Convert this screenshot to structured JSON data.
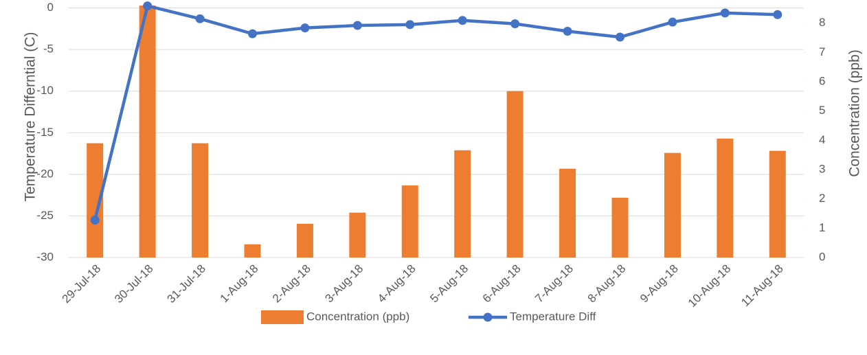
{
  "chart_data": {
    "type": "bar-line",
    "categories": [
      "29-Jul-18",
      "30-Jul-18",
      "31-Jul-18",
      "1-Aug-18",
      "2-Aug-18",
      "3-Aug-18",
      "4-Aug-18",
      "5-Aug-18",
      "6-Aug-18",
      "7-Aug-18",
      "8-Aug-18",
      "9-Aug-18",
      "10-Aug-18",
      "11-Aug-18"
    ],
    "y_label": "Temperature Differntial (C)",
    "y2_label": "Concentration (ppb)",
    "ylim": [
      -30,
      1.7
    ],
    "yticks": [
      -30,
      -25,
      -20,
      -15,
      -10,
      -5,
      0
    ],
    "y2lim": [
      0,
      9
    ],
    "y2ticks": [
      0,
      1,
      2,
      3,
      4,
      5,
      6,
      7,
      8,
      9
    ],
    "grid": true,
    "legend": "bottom",
    "series": [
      {
        "name": "Concentration (ppb)",
        "type": "bar",
        "axis": "y2",
        "color": "#ed7d31",
        "values": [
          3.9,
          8.6,
          3.9,
          0.45,
          1.15,
          1.53,
          2.46,
          3.66,
          5.68,
          3.03,
          2.04,
          3.57,
          4.06,
          3.64
        ]
      },
      {
        "name": "Temperature Diff",
        "type": "line",
        "axis": "y",
        "color": "#4472c4",
        "values": [
          -25.5,
          0.25,
          -1.3,
          -3.1,
          -2.4,
          -2.1,
          -2.0,
          -1.5,
          -1.9,
          -2.8,
          -3.5,
          -1.7,
          -0.6,
          -0.8
        ]
      }
    ]
  }
}
